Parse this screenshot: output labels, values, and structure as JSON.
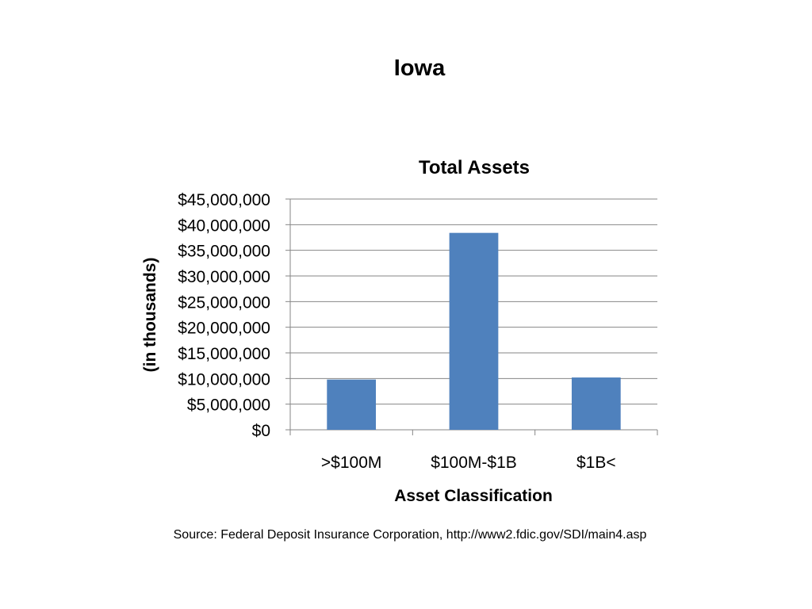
{
  "slide": {
    "title": "Iowa",
    "source": "Source:  Federal Deposit Insurance Corporation, http://www2.fdic.gov/SDI/main4.asp"
  },
  "chart_data": {
    "type": "bar",
    "title": "Total Assets",
    "xlabel": "Asset Classification",
    "ylabel": "(in thousands)",
    "categories": [
      ">$100M",
      "$100M-$1B",
      "$1B<"
    ],
    "values": [
      9800000,
      38400000,
      10200000
    ],
    "ylim": [
      0,
      45000000
    ],
    "yticks": [
      0,
      5000000,
      10000000,
      15000000,
      20000000,
      25000000,
      30000000,
      35000000,
      40000000,
      45000000
    ],
    "ytick_labels": [
      "$0",
      "$5,000,000",
      "$10,000,000",
      "$15,000,000",
      "$20,000,000",
      "$25,000,000",
      "$30,000,000",
      "$35,000,000",
      "$40,000,000",
      "$45,000,000"
    ],
    "grid": true,
    "legend": false,
    "bar_color": "#4F81BD",
    "grid_color": "#868686"
  }
}
